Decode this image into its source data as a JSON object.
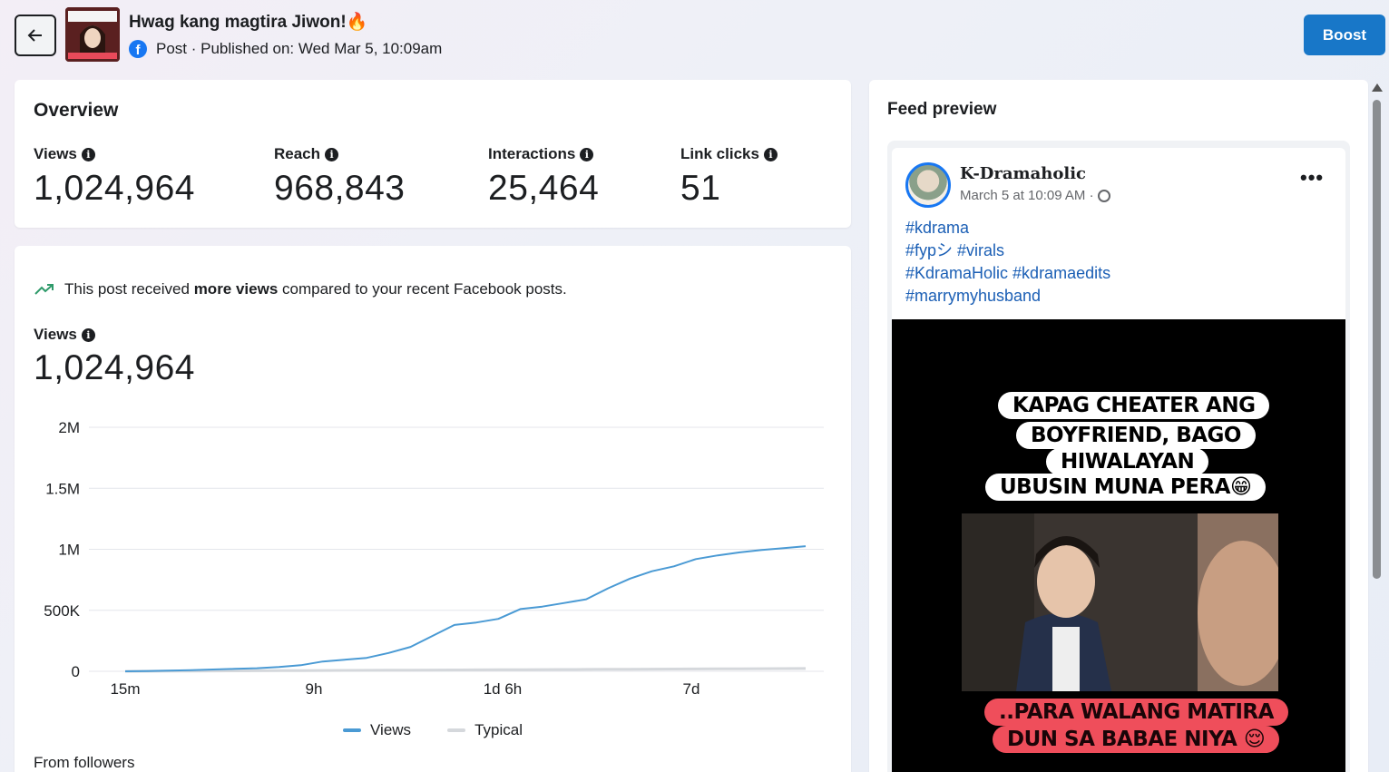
{
  "header": {
    "post_title": "Hwag kang magtira Jiwon!",
    "post_emoji": "🔥",
    "meta": "Post · Published on: Wed Mar 5, 10:09am",
    "boost_label": "Boost"
  },
  "overview": {
    "title": "Overview",
    "metrics": [
      {
        "label": "Views",
        "value": "1,024,964"
      },
      {
        "label": "Reach",
        "value": "968,843"
      },
      {
        "label": "Interactions",
        "value": "25,464"
      },
      {
        "label": "Link clicks",
        "value": "51"
      }
    ]
  },
  "views_section": {
    "trend_prefix": "This post received ",
    "trend_bold": "more views",
    "trend_suffix": " compared to your recent Facebook posts.",
    "label": "Views",
    "value": "1,024,964",
    "from_followers": "From followers"
  },
  "chart_data": {
    "type": "line",
    "x_ticks": [
      "15m",
      "9h",
      "1d 6h",
      "7d"
    ],
    "y_ticks": [
      "2M",
      "1.5M",
      "1M",
      "500K",
      "0"
    ],
    "ylim": [
      0,
      2000000
    ],
    "series": [
      {
        "name": "Views",
        "color": "#4a9ad4",
        "values": [
          0,
          2000,
          6000,
          10000,
          15000,
          20000,
          25000,
          35000,
          50000,
          80000,
          95000,
          110000,
          150000,
          200000,
          290000,
          380000,
          400000,
          430000,
          510000,
          530000,
          560000,
          590000,
          680000,
          760000,
          820000,
          860000,
          920000,
          950000,
          975000,
          995000,
          1010000,
          1024964
        ]
      },
      {
        "name": "Typical",
        "color": "#d5d8dc",
        "values": [
          0,
          800,
          1500,
          2200,
          3000,
          3800,
          4500,
          5200,
          6000,
          6800,
          7500,
          8200,
          9000,
          9800,
          10500,
          11200,
          12000,
          12800,
          13500,
          14200,
          15000,
          15800,
          16500,
          17200,
          18000,
          18800,
          19500,
          20200,
          21000,
          21800,
          22500,
          23000
        ]
      }
    ]
  },
  "feed_preview": {
    "title": "Feed preview",
    "page_name": "K-Dramaholic",
    "post_date": "March 5 at 10:09 AM ·",
    "more_label": "•••",
    "hashtags": [
      "#kdrama",
      "#fypシ #virals",
      "#KdramaHolic #kdramaedits",
      "#marrymyhusband"
    ],
    "overlay_lines": [
      "KAPAG CHEATER ANG",
      "BOYFRIEND, BAGO",
      "HIWALAYAN",
      "UBUSIN MUNA PERA😁"
    ],
    "bottom_lines": [
      "..PARA WALANG MATIRA",
      "DUN SA BABAE NIYA 😌"
    ]
  }
}
